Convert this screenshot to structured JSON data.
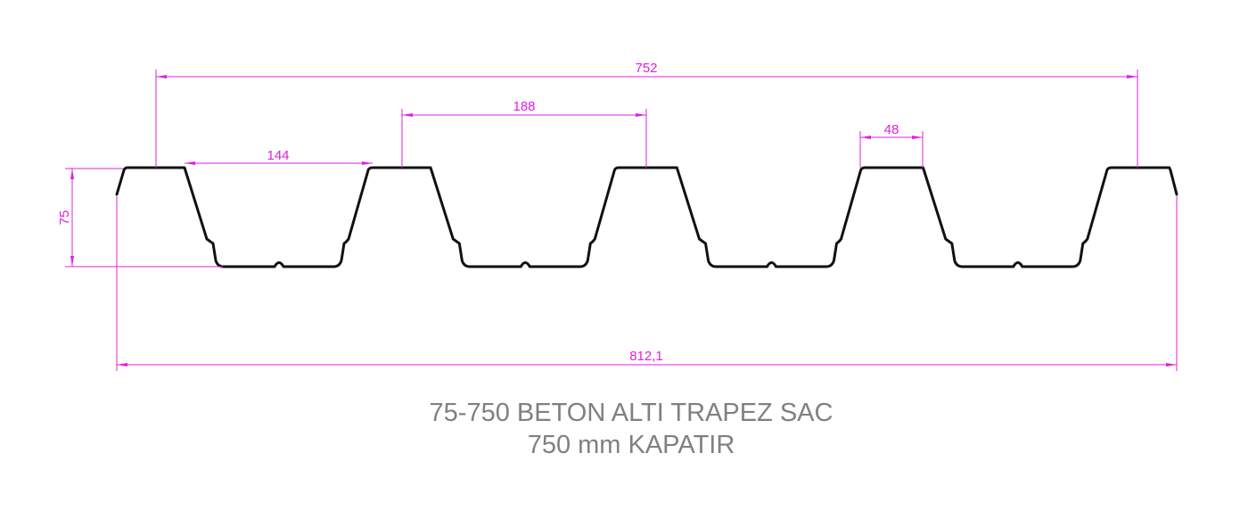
{
  "diagram": {
    "title_line1": "75-750 BETON ALTI TRAPEZ SAC",
    "title_line2": "750 mm KAPATIR",
    "dimensions": {
      "overall_top": "752",
      "rib_pitch": "188",
      "bottom_flange": "144",
      "top_flange": "48",
      "height": "75",
      "total_width": "812,1"
    }
  },
  "colors": {
    "dimension": "#e020e0",
    "profile": "#111111",
    "title": "#808080"
  }
}
